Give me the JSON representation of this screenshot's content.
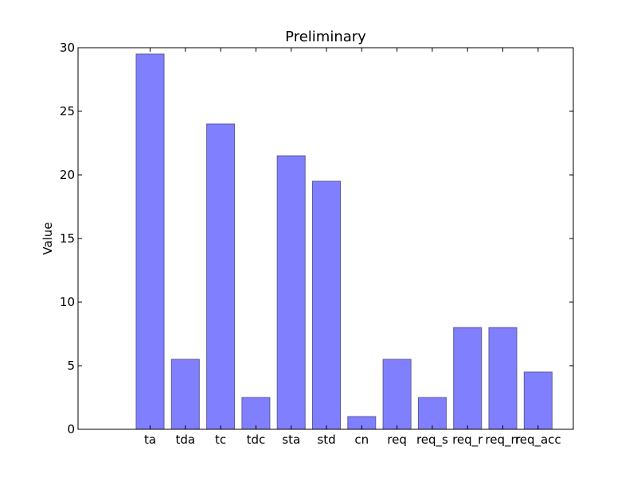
{
  "chart_data": {
    "type": "bar",
    "title": "Preliminary",
    "xlabel": "",
    "ylabel": "Value",
    "categories": [
      "ta",
      "tda",
      "tc",
      "tdc",
      "sta",
      "std",
      "cn",
      "req",
      "req_s",
      "req_r",
      "req_rr",
      "req_acc"
    ],
    "values": [
      29.5,
      5.5,
      24,
      2.5,
      21.5,
      19.5,
      1,
      5.5,
      2.5,
      8,
      8,
      4.5
    ],
    "ylim": [
      0,
      30
    ],
    "yticks": [
      0,
      5,
      10,
      15,
      20,
      25,
      30
    ],
    "grid": false,
    "legend": "none",
    "bar_color": "#8080ff",
    "bar_edge_color": "#5a5a9a"
  }
}
